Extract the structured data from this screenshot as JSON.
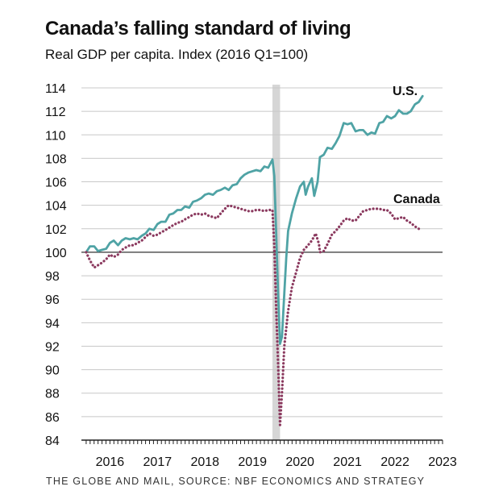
{
  "title": "Canada’s falling standard of living",
  "subtitle": "Real GDP per capita. Index (2016 Q1=100)",
  "source": "THE GLOBE AND MAIL, SOURCE: NBF ECONOMICS AND STRATEGY",
  "colors": {
    "us": "#4fa3a5",
    "canada": "#8b3a5f",
    "recession": "#d6d6d6",
    "grid": "#c8c8c8",
    "baseline": "#222222"
  },
  "chart_data": {
    "type": "line",
    "ylim": [
      84,
      114
    ],
    "xlim": [
      2015.9,
      2023.5
    ],
    "yticks": [
      84,
      86,
      88,
      90,
      92,
      94,
      96,
      98,
      100,
      102,
      104,
      106,
      108,
      110,
      112,
      114
    ],
    "xtick_labels": [
      "2016",
      "2017",
      "2018",
      "2019",
      "2020",
      "2021",
      "2022",
      "2023"
    ],
    "xtick_positions": [
      2016.5,
      2017.5,
      2018.5,
      2019.5,
      2020.5,
      2021.5,
      2022.5,
      2023.5
    ],
    "baseline": 100,
    "recession_band": [
      2019.92,
      2020.08
    ],
    "grid": true,
    "series": [
      {
        "name": "U.S.",
        "style": "solid",
        "points": [
          [
            2016.0,
            100.0
          ],
          [
            2016.08,
            100.5
          ],
          [
            2016.17,
            100.5
          ],
          [
            2016.25,
            100.1
          ],
          [
            2016.33,
            100.2
          ],
          [
            2016.42,
            100.3
          ],
          [
            2016.5,
            100.8
          ],
          [
            2016.58,
            101.0
          ],
          [
            2016.67,
            100.6
          ],
          [
            2016.75,
            101.0
          ],
          [
            2016.83,
            101.2
          ],
          [
            2016.92,
            101.1
          ],
          [
            2017.0,
            101.2
          ],
          [
            2017.08,
            101.1
          ],
          [
            2017.17,
            101.4
          ],
          [
            2017.25,
            101.6
          ],
          [
            2017.33,
            102.0
          ],
          [
            2017.42,
            101.9
          ],
          [
            2017.5,
            102.4
          ],
          [
            2017.58,
            102.6
          ],
          [
            2017.67,
            102.6
          ],
          [
            2017.75,
            103.2
          ],
          [
            2017.83,
            103.3
          ],
          [
            2017.92,
            103.6
          ],
          [
            2018.0,
            103.6
          ],
          [
            2018.08,
            103.9
          ],
          [
            2018.17,
            103.8
          ],
          [
            2018.25,
            104.3
          ],
          [
            2018.33,
            104.4
          ],
          [
            2018.42,
            104.6
          ],
          [
            2018.5,
            104.9
          ],
          [
            2018.58,
            105.0
          ],
          [
            2018.67,
            104.9
          ],
          [
            2018.75,
            105.2
          ],
          [
            2018.83,
            105.3
          ],
          [
            2018.92,
            105.5
          ],
          [
            2019.0,
            105.3
          ],
          [
            2019.08,
            105.7
          ],
          [
            2019.17,
            105.8
          ],
          [
            2019.25,
            106.3
          ],
          [
            2019.33,
            106.6
          ],
          [
            2019.42,
            106.8
          ],
          [
            2019.5,
            106.9
          ],
          [
            2019.58,
            107.0
          ],
          [
            2019.67,
            106.9
          ],
          [
            2019.75,
            107.3
          ],
          [
            2019.83,
            107.2
          ],
          [
            2019.92,
            107.9
          ],
          [
            2019.96,
            106.5
          ],
          [
            2020.0,
            101.5
          ],
          [
            2020.04,
            96.5
          ],
          [
            2020.08,
            92.2
          ],
          [
            2020.12,
            92.8
          ],
          [
            2020.17,
            96.5
          ],
          [
            2020.21,
            99.5
          ],
          [
            2020.25,
            101.8
          ],
          [
            2020.33,
            103.3
          ],
          [
            2020.42,
            104.6
          ],
          [
            2020.5,
            105.6
          ],
          [
            2020.58,
            106.0
          ],
          [
            2020.62,
            104.9
          ],
          [
            2020.67,
            105.6
          ],
          [
            2020.75,
            106.3
          ],
          [
            2020.8,
            104.8
          ],
          [
            2020.87,
            106.0
          ],
          [
            2020.92,
            108.1
          ],
          [
            2021.0,
            108.3
          ],
          [
            2021.08,
            108.9
          ],
          [
            2021.17,
            108.8
          ],
          [
            2021.25,
            109.3
          ],
          [
            2021.33,
            109.9
          ],
          [
            2021.42,
            111.0
          ],
          [
            2021.5,
            110.9
          ],
          [
            2021.58,
            111.0
          ],
          [
            2021.67,
            110.3
          ],
          [
            2021.75,
            110.4
          ],
          [
            2021.83,
            110.4
          ],
          [
            2021.92,
            110.0
          ],
          [
            2022.0,
            110.2
          ],
          [
            2022.08,
            110.1
          ],
          [
            2022.17,
            111.0
          ],
          [
            2022.25,
            111.1
          ],
          [
            2022.33,
            111.6
          ],
          [
            2022.42,
            111.4
          ],
          [
            2022.5,
            111.6
          ],
          [
            2022.58,
            112.1
          ],
          [
            2022.67,
            111.8
          ],
          [
            2022.75,
            111.8
          ],
          [
            2022.83,
            112.0
          ],
          [
            2022.92,
            112.6
          ],
          [
            2023.0,
            112.8
          ],
          [
            2023.08,
            113.3
          ]
        ]
      },
      {
        "name": "Canada",
        "style": "dotted",
        "points": [
          [
            2016.0,
            100.0
          ],
          [
            2016.08,
            99.3
          ],
          [
            2016.17,
            98.7
          ],
          [
            2016.25,
            98.9
          ],
          [
            2016.33,
            99.1
          ],
          [
            2016.42,
            99.4
          ],
          [
            2016.5,
            99.8
          ],
          [
            2016.58,
            99.6
          ],
          [
            2016.67,
            99.8
          ],
          [
            2016.75,
            100.2
          ],
          [
            2016.83,
            100.4
          ],
          [
            2016.92,
            100.6
          ],
          [
            2017.0,
            100.6
          ],
          [
            2017.08,
            100.8
          ],
          [
            2017.17,
            101.0
          ],
          [
            2017.25,
            101.3
          ],
          [
            2017.33,
            101.6
          ],
          [
            2017.42,
            101.4
          ],
          [
            2017.5,
            101.5
          ],
          [
            2017.58,
            101.7
          ],
          [
            2017.67,
            101.9
          ],
          [
            2017.75,
            102.1
          ],
          [
            2017.83,
            102.3
          ],
          [
            2017.92,
            102.5
          ],
          [
            2018.0,
            102.6
          ],
          [
            2018.08,
            102.8
          ],
          [
            2018.17,
            103.0
          ],
          [
            2018.25,
            103.2
          ],
          [
            2018.33,
            103.3
          ],
          [
            2018.42,
            103.2
          ],
          [
            2018.5,
            103.3
          ],
          [
            2018.58,
            103.1
          ],
          [
            2018.67,
            103.0
          ],
          [
            2018.75,
            102.9
          ],
          [
            2018.83,
            103.3
          ],
          [
            2018.92,
            103.7
          ],
          [
            2019.0,
            104.0
          ],
          [
            2019.08,
            103.9
          ],
          [
            2019.17,
            103.8
          ],
          [
            2019.25,
            103.7
          ],
          [
            2019.33,
            103.6
          ],
          [
            2019.42,
            103.5
          ],
          [
            2019.5,
            103.5
          ],
          [
            2019.58,
            103.6
          ],
          [
            2019.67,
            103.6
          ],
          [
            2019.75,
            103.5
          ],
          [
            2019.83,
            103.6
          ],
          [
            2019.92,
            103.6
          ],
          [
            2019.96,
            100.5
          ],
          [
            2020.0,
            95.0
          ],
          [
            2020.04,
            90.5
          ],
          [
            2020.08,
            85.3
          ],
          [
            2020.12,
            88.0
          ],
          [
            2020.17,
            92.0
          ],
          [
            2020.25,
            95.0
          ],
          [
            2020.33,
            97.0
          ],
          [
            2020.42,
            98.3
          ],
          [
            2020.5,
            99.5
          ],
          [
            2020.58,
            100.2
          ],
          [
            2020.67,
            100.6
          ],
          [
            2020.75,
            101.0
          ],
          [
            2020.83,
            101.6
          ],
          [
            2020.9,
            100.7
          ],
          [
            2020.92,
            100.0
          ],
          [
            2021.0,
            100.1
          ],
          [
            2021.08,
            100.7
          ],
          [
            2021.17,
            101.5
          ],
          [
            2021.25,
            101.8
          ],
          [
            2021.33,
            102.2
          ],
          [
            2021.42,
            102.7
          ],
          [
            2021.5,
            102.9
          ],
          [
            2021.58,
            102.7
          ],
          [
            2021.67,
            102.7
          ],
          [
            2021.75,
            103.1
          ],
          [
            2021.83,
            103.5
          ],
          [
            2021.92,
            103.6
          ],
          [
            2022.0,
            103.7
          ],
          [
            2022.08,
            103.7
          ],
          [
            2022.17,
            103.7
          ],
          [
            2022.25,
            103.6
          ],
          [
            2022.33,
            103.6
          ],
          [
            2022.42,
            103.3
          ],
          [
            2022.5,
            102.8
          ],
          [
            2022.58,
            102.9
          ],
          [
            2022.67,
            103.0
          ],
          [
            2022.75,
            102.7
          ],
          [
            2022.83,
            102.5
          ],
          [
            2022.92,
            102.2
          ],
          [
            2023.0,
            102.0
          ]
        ]
      }
    ]
  }
}
